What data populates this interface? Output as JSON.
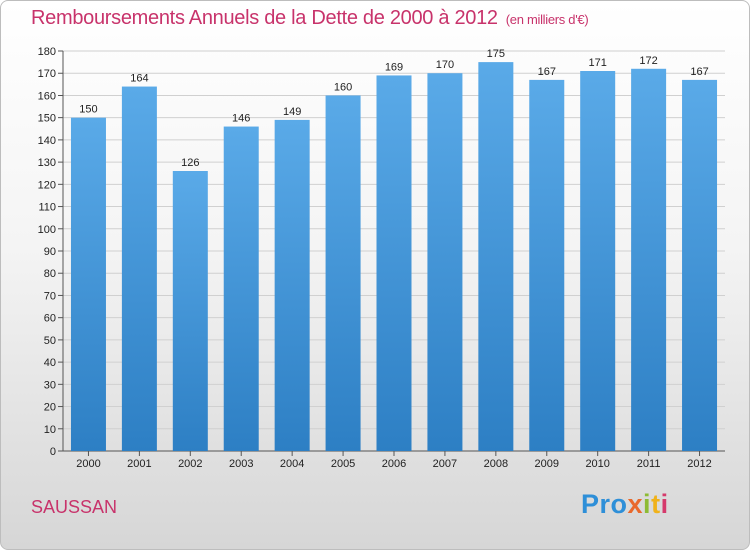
{
  "title": "Remboursements Annuels de la Dette de 2000 à 2012",
  "unit": "(en milliers d'€)",
  "town": "SAUSSAN",
  "logo": {
    "part1": "Pro",
    "part2": "x",
    "part3": "i",
    "part4": "t",
    "part5": "i"
  },
  "colors": {
    "bar_top": "#5aaae8",
    "bar_bottom": "#2d7fc4",
    "title": "#c8336b"
  },
  "chart_data": {
    "type": "bar",
    "categories": [
      "2000",
      "2001",
      "2002",
      "2003",
      "2004",
      "2005",
      "2006",
      "2007",
      "2008",
      "2009",
      "2010",
      "2011",
      "2012"
    ],
    "values": [
      150,
      164,
      126,
      146,
      149,
      160,
      169,
      170,
      175,
      167,
      171,
      172,
      167
    ],
    "ylim": [
      0,
      180
    ],
    "yticks": [
      0,
      10,
      20,
      30,
      40,
      50,
      60,
      70,
      80,
      90,
      100,
      110,
      120,
      130,
      140,
      150,
      160,
      170,
      180
    ],
    "grid": true,
    "legend": "none"
  }
}
